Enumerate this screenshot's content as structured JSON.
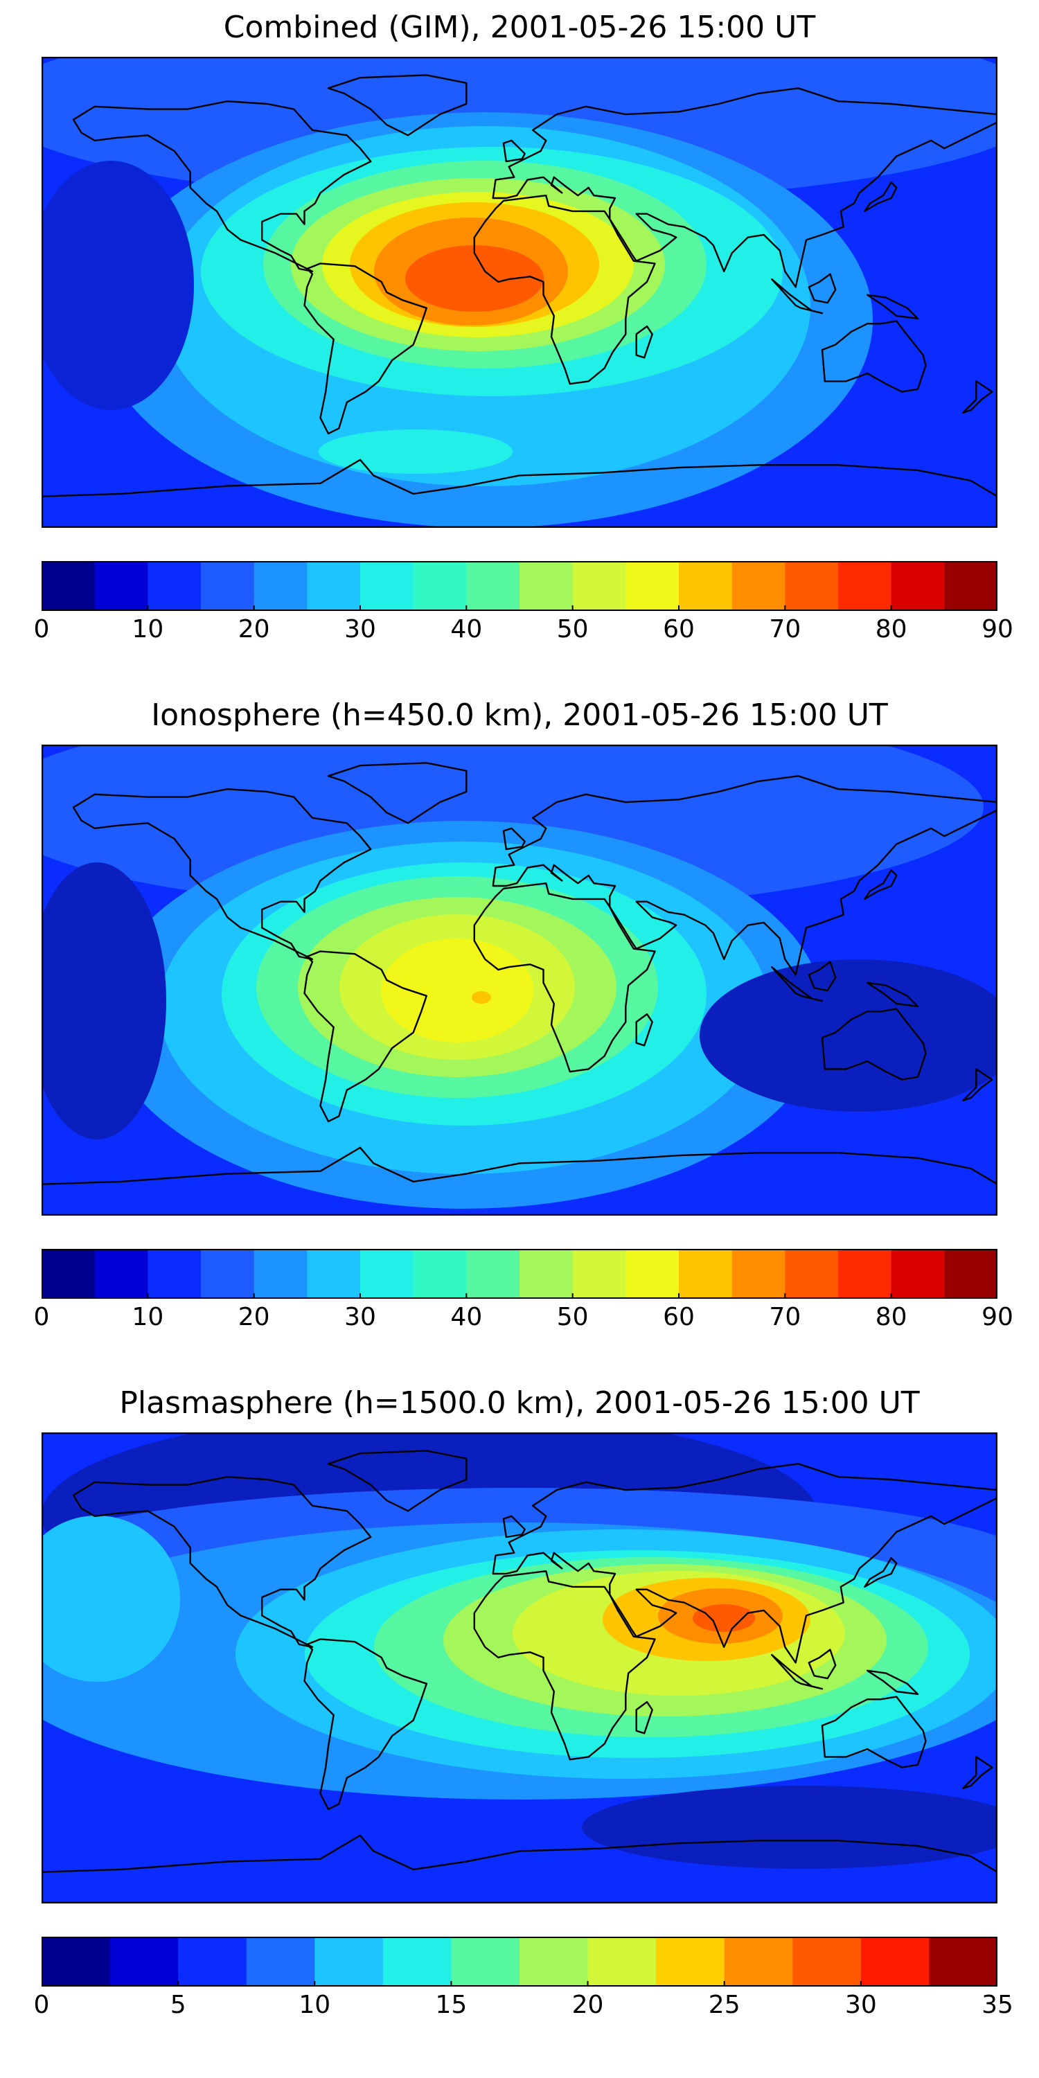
{
  "figure": {
    "panels": [
      {
        "title": "Combined (GIM), 2001-05-26 15:00 UT",
        "background_color": "#0a2cff",
        "continent_stroke": "#000000",
        "contour_regions": [
          {
            "name": "north-belt",
            "color": "#1e5cff"
          },
          {
            "name": "atlantic-band-outer",
            "color": "#1c93ff"
          },
          {
            "name": "atlantic-band",
            "color": "#1ec4ff"
          },
          {
            "name": "band-cyan",
            "color": "#22f0e6"
          },
          {
            "name": "band-mint",
            "color": "#57f7a2"
          },
          {
            "name": "band-green",
            "color": "#a4f75a"
          },
          {
            "name": "band-yellow",
            "color": "#e5f71f"
          },
          {
            "name": "band-gold",
            "color": "#ffc400"
          },
          {
            "name": "band-orange",
            "color": "#ff8d00"
          },
          {
            "name": "peak-orange-red",
            "color": "#ff5a00"
          },
          {
            "name": "south-cyan-patch",
            "color": "#22f0e6"
          },
          {
            "name": "pacific-low",
            "color": "#0a24d6"
          }
        ]
      },
      {
        "title": "Ionosphere  (h=450.0 km), 2001-05-26 15:00 UT",
        "background_color": "#0a2cff",
        "continent_stroke": "#000000",
        "contour_regions": [
          {
            "name": "north-belt",
            "color": "#1e5cff"
          },
          {
            "name": "band-blue",
            "color": "#1c93ff"
          },
          {
            "name": "band-light-blue",
            "color": "#1ec4ff"
          },
          {
            "name": "band-cyan",
            "color": "#22f0e6"
          },
          {
            "name": "band-mint",
            "color": "#57f7a2"
          },
          {
            "name": "band-green",
            "color": "#a4f75a"
          },
          {
            "name": "band-yellowgreen",
            "color": "#d2f738"
          },
          {
            "name": "peak-yellow",
            "color": "#f2f71a"
          },
          {
            "name": "peak-dot",
            "color": "#ffc400"
          },
          {
            "name": "pacific-low",
            "color": "#0a1fbe"
          },
          {
            "name": "indian-low",
            "color": "#0a1fbe"
          }
        ]
      },
      {
        "title": "Plasmasphere (h=1500.0 km), 2001-05-26 15:00 UT",
        "background_color": "#0a2cff",
        "continent_stroke": "#000000",
        "contour_regions": [
          {
            "name": "arctic-low",
            "color": "#0a1fbe"
          },
          {
            "name": "belt-blue",
            "color": "#1e5cff"
          },
          {
            "name": "belt-mid",
            "color": "#1c93ff"
          },
          {
            "name": "pacific-patch",
            "color": "#1ec4ff"
          },
          {
            "name": "band-light-blue",
            "color": "#1ec4ff"
          },
          {
            "name": "band-cyan",
            "color": "#22f0e6"
          },
          {
            "name": "band-mint",
            "color": "#57f7a2"
          },
          {
            "name": "band-green",
            "color": "#a4f75a"
          },
          {
            "name": "band-yellowgreen",
            "color": "#d2f738"
          },
          {
            "name": "band-gold",
            "color": "#ffc400"
          },
          {
            "name": "peak-orange",
            "color": "#ff8d00"
          },
          {
            "name": "peak-red",
            "color": "#ff5a00"
          },
          {
            "name": "southern-low",
            "color": "#0a1fbe"
          }
        ]
      }
    ]
  },
  "chart_data": [
    {
      "type": "heatmap",
      "title": "Combined (GIM), 2001-05-26 15:00 UT",
      "colorbar": {
        "range": [
          0,
          90
        ],
        "step": 5,
        "ticks": [
          0,
          10,
          20,
          30,
          40,
          50,
          60,
          70,
          80,
          90
        ],
        "tick_labels": [
          "0",
          "10",
          "20",
          "30",
          "40",
          "50",
          "60",
          "70",
          "80",
          "90"
        ],
        "colors": [
          "#00008f",
          "#0000d4",
          "#0a2cff",
          "#1e5cff",
          "#1c93ff",
          "#1ec4ff",
          "#22f0e6",
          "#33f7c4",
          "#57f7a2",
          "#a4f75a",
          "#d2f738",
          "#f2f71a",
          "#ffc400",
          "#ff8d00",
          "#ff5a00",
          "#ff2a00",
          "#d90000",
          "#990000"
        ]
      },
      "field_min_approx": 5,
      "field_max_approx": 75,
      "xlabel": "",
      "ylabel": ""
    },
    {
      "type": "heatmap",
      "title": "Ionosphere  (h=450.0 km), 2001-05-26 15:00 UT",
      "colorbar": {
        "range": [
          0,
          90
        ],
        "step": 5,
        "ticks": [
          0,
          10,
          20,
          30,
          40,
          50,
          60,
          70,
          80,
          90
        ],
        "tick_labels": [
          "0",
          "10",
          "20",
          "30",
          "40",
          "50",
          "60",
          "70",
          "80",
          "90"
        ],
        "colors": [
          "#00008f",
          "#0000d4",
          "#0a2cff",
          "#1e5cff",
          "#1c93ff",
          "#1ec4ff",
          "#22f0e6",
          "#33f7c4",
          "#57f7a2",
          "#a4f75a",
          "#d2f738",
          "#f2f71a",
          "#ffc400",
          "#ff8d00",
          "#ff5a00",
          "#ff2a00",
          "#d90000",
          "#990000"
        ]
      },
      "field_min_approx": 5,
      "field_max_approx": 60,
      "xlabel": "",
      "ylabel": ""
    },
    {
      "type": "heatmap",
      "title": "Plasmasphere (h=1500.0 km), 2001-05-26 15:00 UT",
      "colorbar": {
        "range": [
          0,
          35
        ],
        "step": 2.5,
        "ticks": [
          0,
          5,
          10,
          15,
          20,
          25,
          30,
          35
        ],
        "tick_labels": [
          "0",
          "5",
          "10",
          "15",
          "20",
          "25",
          "30",
          "35"
        ],
        "colors": [
          "#00008f",
          "#0000d4",
          "#0a2cff",
          "#1c6cff",
          "#1ec4ff",
          "#22f0e6",
          "#57f7a2",
          "#a4f75a",
          "#d2f738",
          "#ffd000",
          "#ff8d00",
          "#ff5a00",
          "#ff1a00",
          "#990000"
        ]
      },
      "field_min_approx": 2.5,
      "field_max_approx": 28,
      "xlabel": "",
      "ylabel": ""
    }
  ]
}
